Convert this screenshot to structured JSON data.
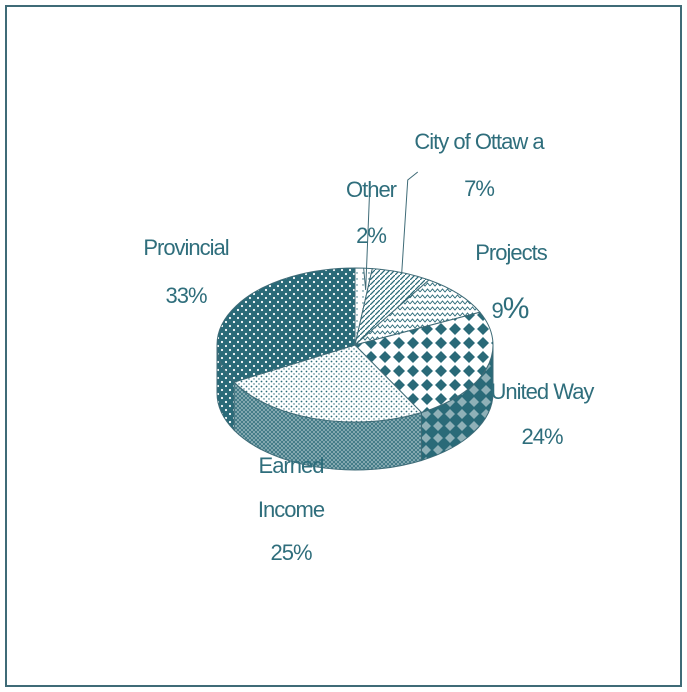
{
  "chart_data": {
    "type": "pie",
    "title": "",
    "categories": [
      "Other",
      "City of Ottaw a",
      "Projects",
      "United Way",
      "Earned Income",
      "Provincial"
    ],
    "values": [
      2,
      7,
      9,
      24,
      25,
      33
    ],
    "labels": {
      "other": {
        "name": "Other",
        "pct": "2%"
      },
      "city": {
        "name": "City of Ottaw a",
        "pct": "7%"
      },
      "projects": {
        "name": "Projects",
        "pct_num": "9",
        "pct_sign": "%"
      },
      "united": {
        "name": "United Way",
        "pct": "24%"
      },
      "earned": {
        "name_line1": "Earned",
        "name_line2": "Income",
        "pct": "25%"
      },
      "provincial": {
        "name": "Provincial",
        "pct": "33%"
      }
    },
    "colors": {
      "main": "#2a6a78",
      "light": "#ffffff",
      "border": "#3f6b77"
    },
    "legend": "none",
    "grid": false
  }
}
